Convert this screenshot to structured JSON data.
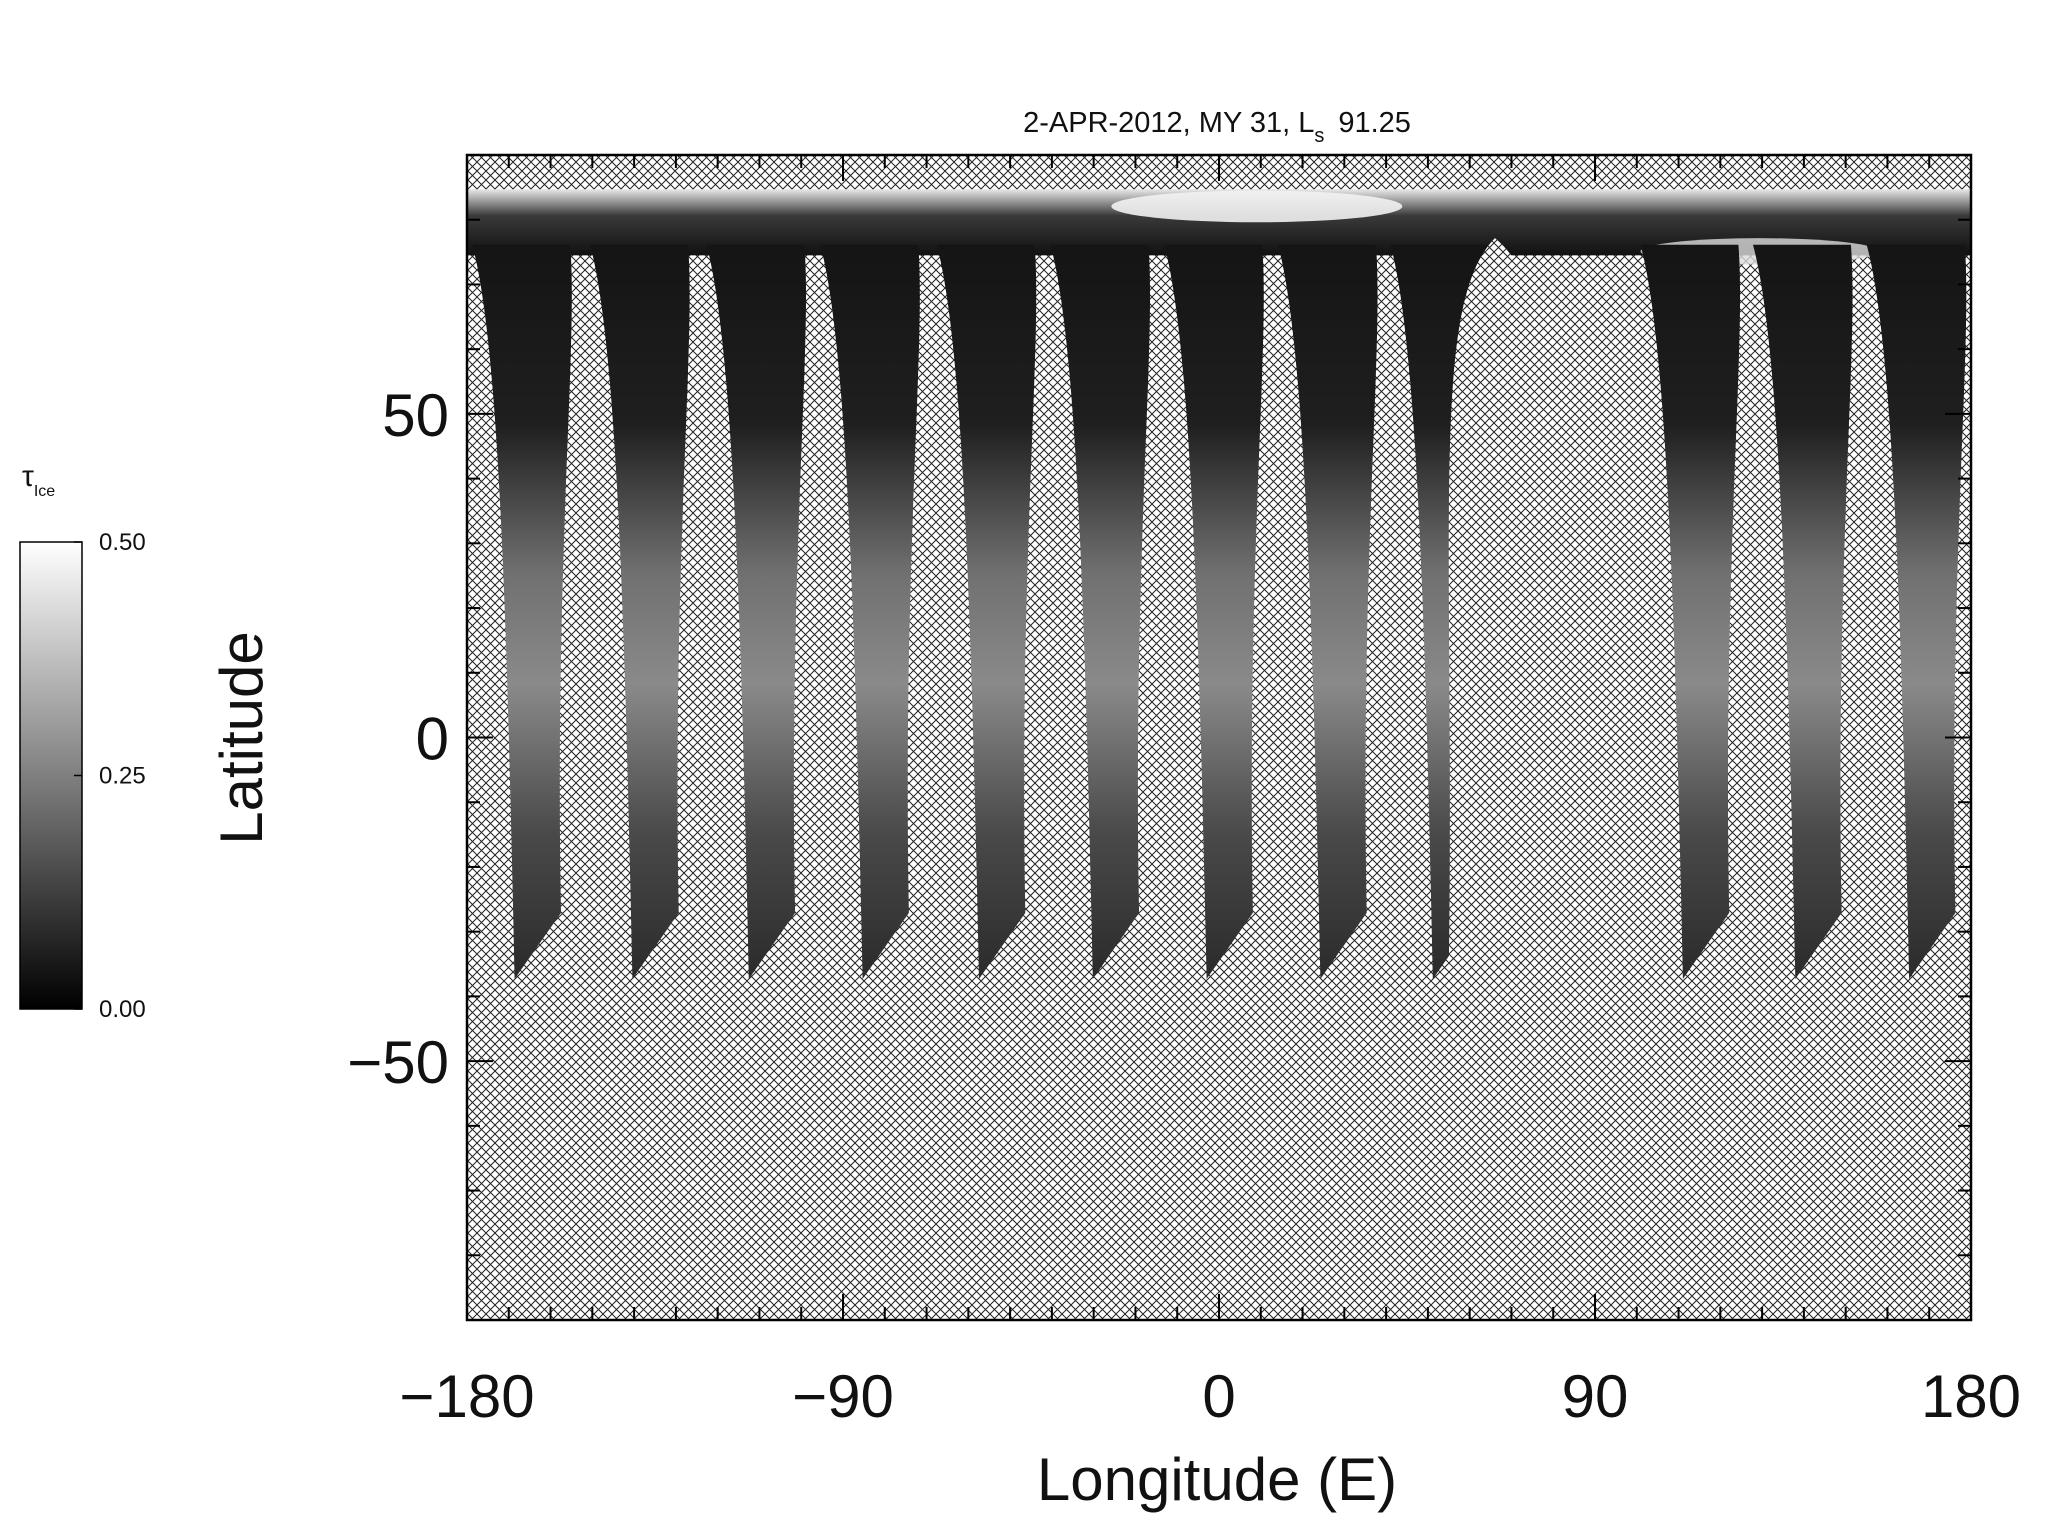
{
  "chart_data": {
    "type": "map",
    "title": "2-APR-2012, MY 31,  L",
    "title_subscript": "s",
    "title_value": "91.25",
    "xlabel": "Longitude (E)",
    "ylabel": "Latitude",
    "xlim": [
      -180,
      180
    ],
    "ylim": [
      -90,
      90
    ],
    "xticks": [
      {
        "value": -180,
        "label": "−180"
      },
      {
        "value": -90,
        "label": "−90"
      },
      0,
      90,
      180
    ],
    "yticks": [
      {
        "value": -50,
        "label": "−50"
      },
      0,
      50
    ],
    "xminorticks": [
      -170,
      -160,
      -150,
      -140,
      -130,
      -120,
      -110,
      -100,
      -80,
      -70,
      -60,
      -50,
      -40,
      -30,
      -20,
      -10,
      10,
      20,
      30,
      40,
      50,
      60,
      70,
      80,
      100,
      110,
      120,
      130,
      140,
      150,
      160,
      170
    ],
    "yminorticks": [
      -80,
      -70,
      -60,
      -40,
      -30,
      -20,
      -10,
      10,
      20,
      30,
      40,
      60,
      70,
      80
    ],
    "colorbar": {
      "label": "τ",
      "label_subscript": "Ice",
      "lim": [
        0,
        0.5
      ],
      "ticks": [
        {
          "value": 0,
          "label": "0.00"
        },
        {
          "value": 0.25,
          "label": "0.25"
        },
        {
          "value": 0.5,
          "label": "0.50"
        }
      ],
      "colors": [
        "#000000",
        "#ffffff"
      ]
    }
  }
}
